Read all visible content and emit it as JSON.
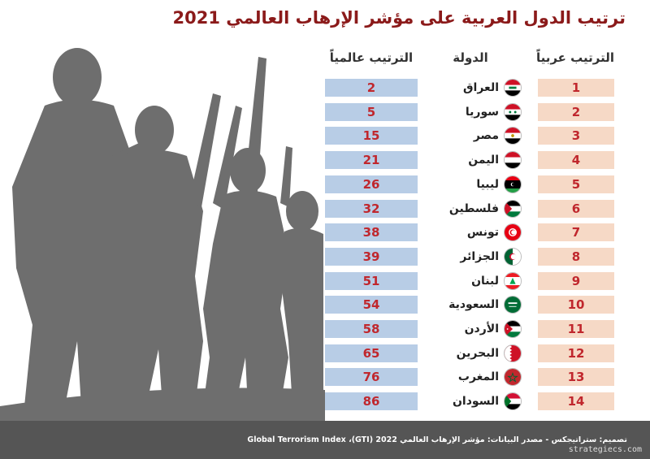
{
  "title": "ترتيب الدول العربية على مؤشر الإرهاب العالمي 2021",
  "headers": {
    "arab_rank": "الترتيب عربياً",
    "country": "الدولة",
    "global_rank": "الترتيب عالمياً"
  },
  "colors": {
    "title": "#8b1a1a",
    "rank_text": "#c0272d",
    "global_cell": "#b8cde6",
    "arab_cell": "#f6d9c6",
    "silhouette": "#6e6e6e",
    "footer": "#555555"
  },
  "chart_data": {
    "type": "table",
    "columns": [
      "الترتيب عربياً",
      "الدولة",
      "الترتيب عالمياً"
    ],
    "rows": [
      {
        "arab_rank": "1",
        "country": "العراق",
        "global_rank": "2",
        "flag": "iraq-flag-icon"
      },
      {
        "arab_rank": "2",
        "country": "سوريا",
        "global_rank": "5",
        "flag": "syria-flag-icon"
      },
      {
        "arab_rank": "3",
        "country": "مصر",
        "global_rank": "15",
        "flag": "egypt-flag-icon"
      },
      {
        "arab_rank": "4",
        "country": "اليمن",
        "global_rank": "21",
        "flag": "yemen-flag-icon"
      },
      {
        "arab_rank": "5",
        "country": "ليبيا",
        "global_rank": "26",
        "flag": "libya-flag-icon"
      },
      {
        "arab_rank": "6",
        "country": "فلسطين",
        "global_rank": "32",
        "flag": "palestine-flag-icon"
      },
      {
        "arab_rank": "7",
        "country": "تونس",
        "global_rank": "38",
        "flag": "tunisia-flag-icon"
      },
      {
        "arab_rank": "8",
        "country": "الجزائر",
        "global_rank": "39",
        "flag": "algeria-flag-icon"
      },
      {
        "arab_rank": "9",
        "country": "لبنان",
        "global_rank": "51",
        "flag": "lebanon-flag-icon"
      },
      {
        "arab_rank": "10",
        "country": "السعودية",
        "global_rank": "54",
        "flag": "saudi-flag-icon"
      },
      {
        "arab_rank": "11",
        "country": "الأردن",
        "global_rank": "58",
        "flag": "jordan-flag-icon"
      },
      {
        "arab_rank": "12",
        "country": "البحرين",
        "global_rank": "65",
        "flag": "bahrain-flag-icon"
      },
      {
        "arab_rank": "13",
        "country": "المغرب",
        "global_rank": "76",
        "flag": "morocco-flag-icon"
      },
      {
        "arab_rank": "14",
        "country": "السودان",
        "global_rank": "86",
        "flag": "sudan-flag-icon"
      }
    ]
  },
  "footer": {
    "source": "تصميم: ستراتيجكس - مصدر البيانات: مؤشر الإرهاب العالمي 2022 (GTI)، Global Terrorism Index",
    "site": "strategiecs.com"
  }
}
